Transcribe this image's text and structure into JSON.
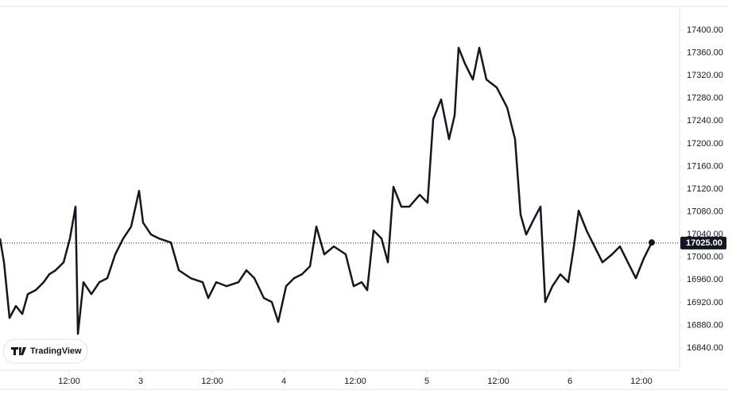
{
  "chart_data": {
    "type": "line",
    "watermark": "TradingView",
    "color": "#131722",
    "x": [
      0.4,
      1.07,
      2,
      3.07,
      4.13,
      5.07,
      6.4,
      7.73,
      8.67,
      9.73,
      11.07,
      12.13,
      13.07,
      13.47,
      14.4,
      15.73,
      17.07,
      18.4,
      19.73,
      21.07,
      22.4,
      23.73,
      24.4,
      25.73,
      27.07,
      29.07,
      30.4,
      32.4,
      34.4,
      35.33,
      36.67,
      38.4,
      40.4,
      41.73,
      43.07,
      44.67,
      46,
      47.07,
      48.4,
      49.73,
      51.07,
      52.4,
      53.47,
      54.8,
      56.4,
      58.4,
      59.73,
      61.07,
      62,
      63.07,
      64.4,
      65.47,
      66.4,
      67.73,
      69.07,
      70.8,
      72.13,
      73.07,
      74.4,
      75.73,
      76.67,
      77.33,
      78.4,
      79.73,
      80.8,
      82,
      83.73,
      85.47,
      86.8,
      87.73,
      88.67,
      90,
      91.07,
      91.87,
      93.07,
      94.4,
      95.73,
      96.67,
      97.47,
      98.8,
      100.13,
      101.47,
      103.07,
      104.4,
      105.73,
      107.07,
      108.4,
      109.73
    ],
    "values": [
      17033,
      16991,
      16893,
      16914,
      16900,
      16935,
      16942,
      16956,
      16970,
      16977,
      16991,
      17033,
      17089,
      16865,
      16956,
      16935,
      16956,
      16963,
      17005,
      17033,
      17054,
      17117,
      17061,
      17040,
      17033,
      17026,
      16977,
      16963,
      16956,
      16928,
      16956,
      16949,
      16956,
      16977,
      16963,
      16928,
      16921,
      16886,
      16949,
      16963,
      16970,
      16984,
      17054,
      17005,
      17019,
      17005,
      16949,
      16956,
      16942,
      17047,
      17033,
      16991,
      17124,
      17089,
      17089,
      17110,
      17096,
      17243,
      17278,
      17208,
      17250,
      17369,
      17341,
      17313,
      17369,
      17313,
      17299,
      17264,
      17208,
      17075,
      17040,
      17068,
      17089,
      16921,
      16949,
      16970,
      16956,
      17019,
      17082,
      17047,
      17019,
      16991,
      17005,
      17019,
      16991,
      16963,
      16998,
      17026
    ],
    "xlim": [
      0.4,
      114.4
    ],
    "xticks": [
      {
        "value": 12,
        "label": "12:00"
      },
      {
        "value": 24,
        "label": "3"
      },
      {
        "value": 36,
        "label": "12:00"
      },
      {
        "value": 48,
        "label": "4"
      },
      {
        "value": 60,
        "label": "12:00"
      },
      {
        "value": 72,
        "label": "5"
      },
      {
        "value": 84,
        "label": "12:00"
      },
      {
        "value": 96,
        "label": "6"
      },
      {
        "value": 108,
        "label": "12:00"
      }
    ],
    "ylim": [
      16800.8,
      17439.2
    ],
    "yticks": [
      {
        "value": 16840,
        "label": "16840.00"
      },
      {
        "value": 16880,
        "label": "16880.00"
      },
      {
        "value": 16920,
        "label": "16920.00"
      },
      {
        "value": 16960,
        "label": "16960.00"
      },
      {
        "value": 17000,
        "label": "17000.00"
      },
      {
        "value": 17040,
        "label": "17040.00"
      },
      {
        "value": 17080,
        "label": "17080.00"
      },
      {
        "value": 17120,
        "label": "17120.00"
      },
      {
        "value": 17160,
        "label": "17160.00"
      },
      {
        "value": 17200,
        "label": "17200.00"
      },
      {
        "value": 17240,
        "label": "17240.00"
      },
      {
        "value": 17280,
        "label": "17280.00"
      },
      {
        "value": 17320,
        "label": "17320.00"
      },
      {
        "value": 17360,
        "label": "17360.00"
      },
      {
        "value": 17400,
        "label": "17400.00"
      }
    ],
    "last_price": {
      "value": 17025,
      "label": "17025.00"
    }
  }
}
